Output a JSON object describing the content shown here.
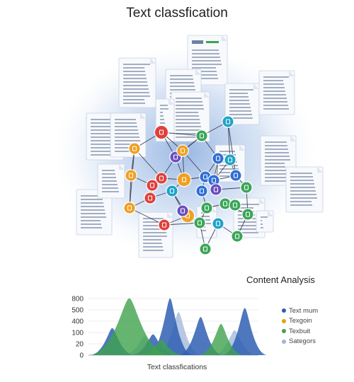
{
  "header": {
    "title": "Text classfication"
  },
  "analysis": {
    "title": "Content Analysis"
  },
  "legend": [
    {
      "label": "Text mum",
      "color": "#2f5fb3"
    },
    {
      "label": "Texgoin",
      "color": "#e0a11b"
    },
    {
      "label": "Texbuit",
      "color": "#3fa34d"
    },
    {
      "label": "Sategors",
      "color": "#9fb5d8"
    }
  ],
  "colors": {
    "blue": "#2f6fd6",
    "green": "#3aa657",
    "orange": "#f0a020",
    "red": "#e0403a",
    "purple": "#6a4fc0",
    "teal": "#1fa3c8"
  },
  "chart_data": {
    "type": "area",
    "title": "",
    "xlabel": "Text classfications",
    "ylabel": "",
    "yticks": [
      "800",
      "500",
      "400",
      "100",
      "20",
      "0"
    ],
    "series": [
      {
        "name": "Text mum",
        "peaks": [
          {
            "x": 0.14,
            "y": 0.39
          },
          {
            "x": 0.38,
            "y": 0.3
          },
          {
            "x": 0.48,
            "y": 0.82
          },
          {
            "x": 0.66,
            "y": 0.55
          },
          {
            "x": 0.92,
            "y": 0.68
          }
        ]
      },
      {
        "name": "Texbuit",
        "peaks": [
          {
            "x": 0.24,
            "y": 0.82
          },
          {
            "x": 0.43,
            "y": 0.22
          },
          {
            "x": 0.78,
            "y": 0.45
          }
        ]
      },
      {
        "name": "Sategors",
        "peaks": [
          {
            "x": 0.33,
            "y": 0.27
          },
          {
            "x": 0.53,
            "y": 0.62
          },
          {
            "x": 0.86,
            "y": 0.36
          }
        ]
      }
    ]
  }
}
